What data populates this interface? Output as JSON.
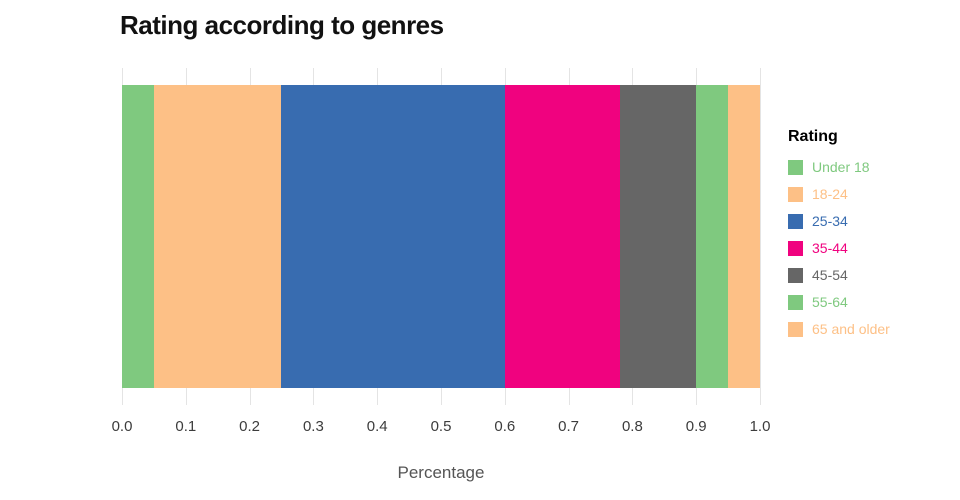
{
  "chart_data": {
    "type": "bar",
    "stacked": true,
    "orientation": "horizontal",
    "title": "Rating according to genres",
    "xlabel": "Percentage",
    "legend_title": "Rating",
    "xlim": [
      0,
      1
    ],
    "grid": true,
    "legend_position": "right",
    "x_ticks": [
      "0.0",
      "0.1",
      "0.2",
      "0.3",
      "0.4",
      "0.5",
      "0.6",
      "0.7",
      "0.8",
      "0.9",
      "1.0"
    ],
    "series": [
      {
        "name": "Under 18",
        "value": 0.05,
        "color": "#7fc97f"
      },
      {
        "name": "18-24",
        "value": 0.2,
        "color": "#fdc086"
      },
      {
        "name": "25-34",
        "value": 0.35,
        "color": "#386cb0"
      },
      {
        "name": "35-44",
        "value": 0.18,
        "color": "#f0027f"
      },
      {
        "name": "45-54",
        "value": 0.12,
        "color": "#666666"
      },
      {
        "name": "55-64",
        "value": 0.05,
        "color": "#7fc97f"
      },
      {
        "name": "65 and older",
        "value": 0.05,
        "color": "#fdc086"
      }
    ]
  }
}
